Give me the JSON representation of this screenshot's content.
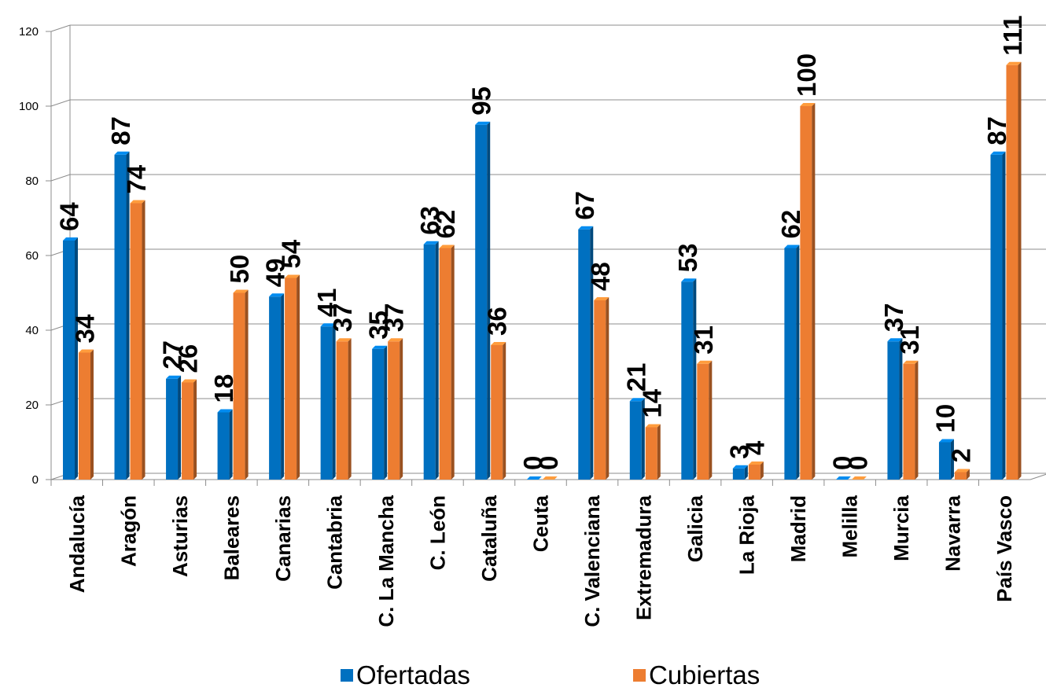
{
  "chart_data": {
    "type": "bar",
    "categories": [
      "Andalucía",
      "Aragón",
      "Asturias",
      "Baleares",
      "Canarias",
      "Cantabria",
      "C. La Mancha",
      "C. León",
      "Cataluña",
      "Ceuta",
      "C. Valenciana",
      "Extremadura",
      "Galicia",
      "La Rioja",
      "Madrid",
      "Melilla",
      "Murcia",
      "Navarra",
      "País Vasco"
    ],
    "series": [
      {
        "name": "Ofertadas",
        "color": "#0070C0",
        "values": [
          64,
          87,
          27,
          18,
          49,
          41,
          35,
          63,
          95,
          0,
          67,
          21,
          53,
          3,
          62,
          0,
          37,
          10,
          87
        ]
      },
      {
        "name": "Cubiertas",
        "color": "#ED7D31",
        "values": [
          34,
          74,
          26,
          50,
          54,
          37,
          37,
          62,
          36,
          0,
          48,
          14,
          31,
          4,
          100,
          0,
          31,
          2,
          111
        ]
      }
    ],
    "yticks": [
      "0",
      "20",
      "40",
      "60",
      "80",
      "100",
      "120"
    ],
    "ylim": [
      0,
      120
    ],
    "grid": true,
    "legend": "bottom",
    "title": "",
    "xlabel": "",
    "ylabel": ""
  }
}
